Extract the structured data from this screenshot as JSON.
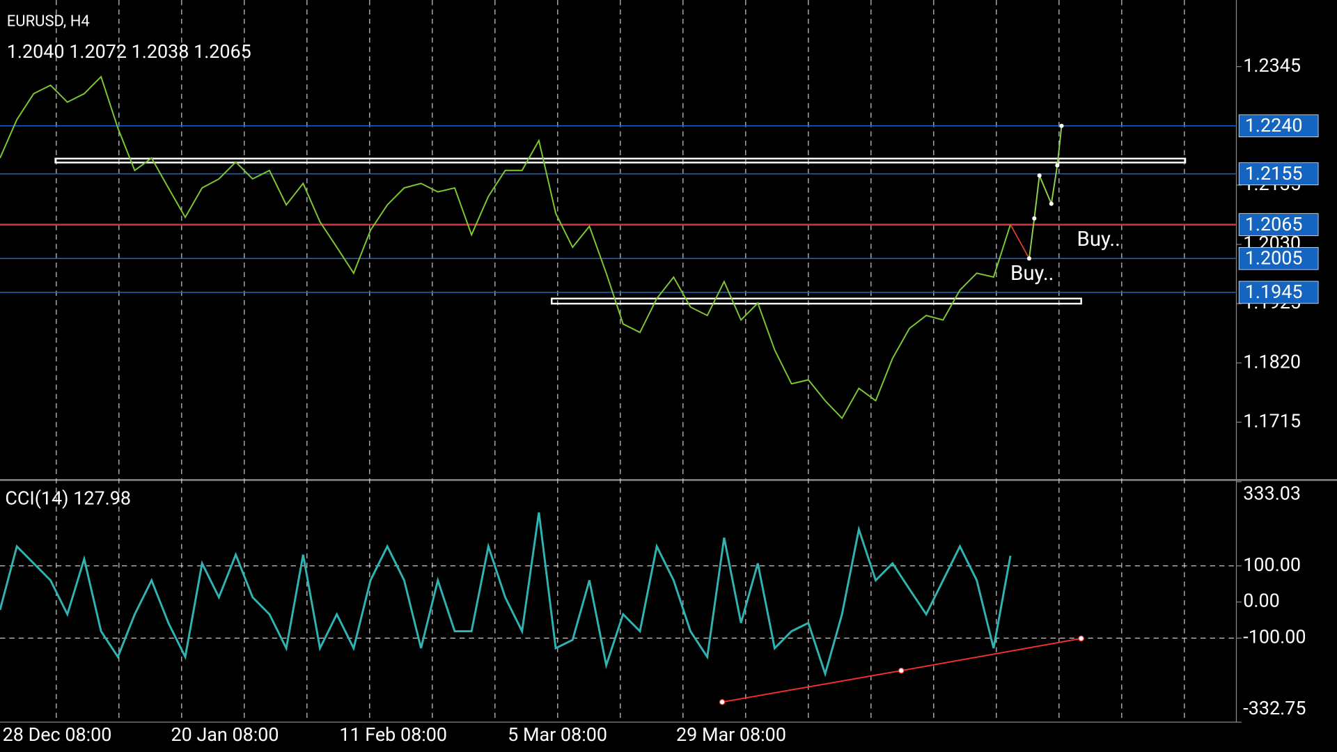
{
  "chart_data": [
    {
      "type": "line",
      "title": "EURUSD, H4",
      "subtitle": "1.2040 1.2072 1.2038 1.2065",
      "categories": [
        "28 Dec 08:00",
        null,
        null,
        null,
        null,
        null,
        null,
        null,
        null,
        null,
        "20 Jan 08:00",
        null,
        null,
        null,
        null,
        null,
        null,
        null,
        null,
        null,
        "11 Feb 08:00",
        null,
        null,
        null,
        null,
        null,
        null,
        null,
        null,
        null,
        "5 Mar 08:00",
        null,
        null,
        null,
        null,
        null,
        null,
        null,
        null,
        null,
        "29 Mar 08:00",
        null,
        null,
        null,
        null,
        null,
        null,
        null,
        null,
        null,
        null,
        null,
        null,
        null,
        null,
        null,
        null,
        null,
        null,
        null,
        null
      ],
      "values": [
        1.2183,
        1.2251,
        1.2297,
        1.2312,
        1.2282,
        1.2297,
        1.2327,
        1.2236,
        1.2161,
        1.2183,
        1.213,
        1.2078,
        1.213,
        1.2146,
        1.2176,
        1.2146,
        1.2161,
        1.21,
        1.2138,
        1.207,
        1.2025,
        1.1979,
        1.2055,
        1.21,
        1.213,
        1.2138,
        1.2123,
        1.213,
        1.2047,
        1.2115,
        1.2161,
        1.2161,
        1.2214,
        1.2085,
        1.2025,
        1.2062,
        1.1979,
        1.1889,
        1.1874,
        1.1934,
        1.1972,
        1.1919,
        1.1904,
        1.1964,
        1.1896,
        1.1926,
        1.1843,
        1.1783,
        1.179,
        1.1753,
        1.1722,
        1.1775,
        1.1753,
        1.1828,
        1.1881,
        1.1904,
        1.1896,
        1.1949,
        1.1979,
        1.1972,
        1.2065
      ],
      "color": "#7ec832",
      "ylim": [
        1.1614,
        1.2463
      ],
      "yticks": [
        1.2345,
        1.2135,
        {
          "value": 1.203,
          "label": "1.2030"
        },
        1.1925,
        {
          "value": 1.182,
          "label": "1.1820"
        },
        1.1715
      ],
      "levels": [
        {
          "value": 1.224,
          "label": "1.2240",
          "color": "#1e64c8"
        },
        {
          "value": 1.2155,
          "label": "1.2155",
          "color": "#1e64c8"
        },
        {
          "value": 1.2065,
          "label": "1.2065",
          "color": "#e0303a"
        },
        {
          "value": 1.2005,
          "label": "1.2005",
          "color": "#1e64c8"
        },
        {
          "value": 1.1945,
          "label": "1.1945",
          "color": "#1e64c8"
        }
      ],
      "zones": [
        {
          "from": 1.2175,
          "to": 1.2182
        },
        {
          "from": 1.1925,
          "to": 1.1934
        }
      ],
      "projection": {
        "values": [
          1.2005,
          1.2076,
          1.2152,
          1.2102,
          1.217,
          1.224
        ],
        "color": "#8fd14f",
        "lead_color": "#e03a2a"
      },
      "annotations": [
        "Buy..",
        "Buy.."
      ],
      "grid": true
    },
    {
      "type": "line",
      "title": "CCI(14) 127.98",
      "values": [
        -22,
        154,
        107,
        60,
        -34,
        119,
        -81,
        -152,
        -34,
        60,
        -58,
        -152,
        107,
        13,
        131,
        13,
        -34,
        -128,
        131,
        -128,
        -34,
        -128,
        60,
        154,
        60,
        -128,
        60,
        -81,
        -81,
        154,
        13,
        -81,
        248,
        -128,
        -105,
        60,
        -175,
        -34,
        -81,
        154,
        60,
        -81,
        -152,
        178,
        -58,
        107,
        -128,
        -81,
        -58,
        -199,
        -34,
        201,
        60,
        107,
        36,
        -34,
        60,
        154,
        60,
        -128,
        127.98
      ],
      "color": "#2fb3b3",
      "ylim": [
        -332.75,
        333.03
      ],
      "yticks": [
        333.03,
        {
          "value": 100,
          "label": "100.00"
        },
        {
          "value": 0,
          "label": "0.00"
        },
        {
          "value": -100,
          "label": "-100.00"
        },
        -332.75
      ],
      "levels": [
        100,
        -100
      ],
      "trendline": {
        "values": [
          -277,
          -190,
          -101
        ],
        "color": "#ff3030"
      },
      "grid": true
    }
  ]
}
